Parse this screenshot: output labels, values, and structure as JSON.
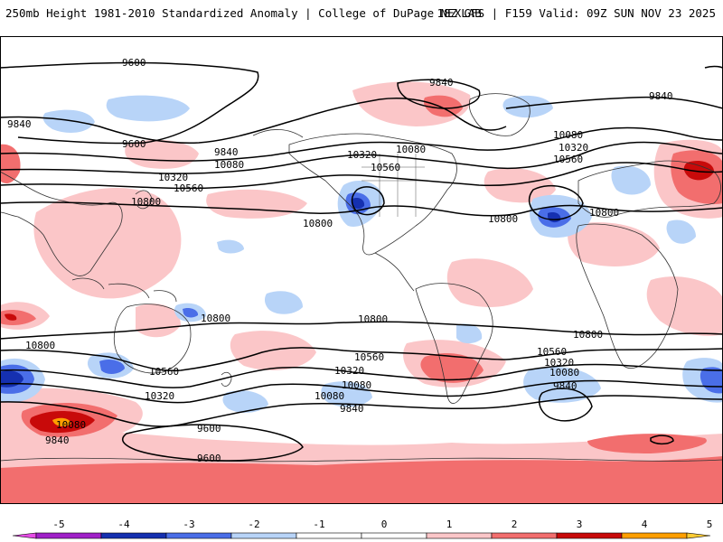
{
  "header": {
    "title": "250mb Height 1981-2010 Standardized Anomaly | College of DuPage NEXLAB",
    "run_info": "18Z GFS | F159 Valid: 09Z SUN NOV 23 2025"
  },
  "map": {
    "product": "250mb Height Standardized Anomaly",
    "model": "GFS",
    "contour_labels": [
      {
        "text": "9600"
      },
      {
        "text": "9840"
      },
      {
        "text": "9840"
      },
      {
        "text": "9600"
      },
      {
        "text": "9840"
      },
      {
        "text": "10080"
      },
      {
        "text": "10320"
      },
      {
        "text": "10560"
      },
      {
        "text": "10800"
      },
      {
        "text": "10320"
      },
      {
        "text": "10080"
      },
      {
        "text": "10560"
      },
      {
        "text": "10080"
      },
      {
        "text": "10320"
      },
      {
        "text": "10560"
      },
      {
        "text": "10800"
      },
      {
        "text": "10800"
      },
      {
        "text": "10800"
      },
      {
        "text": "9840"
      },
      {
        "text": "10800"
      },
      {
        "text": "10800"
      },
      {
        "text": "10800"
      },
      {
        "text": "10800"
      },
      {
        "text": "10560"
      },
      {
        "text": "10320"
      },
      {
        "text": "10080"
      },
      {
        "text": "9840"
      },
      {
        "text": "10560"
      },
      {
        "text": "10320"
      },
      {
        "text": "10080"
      },
      {
        "text": "9840"
      },
      {
        "text": "10560"
      },
      {
        "text": "10320"
      },
      {
        "text": "10080"
      },
      {
        "text": "9840"
      },
      {
        "text": "9600"
      },
      {
        "text": "9600"
      },
      {
        "text": "10080"
      }
    ]
  },
  "colorbar": {
    "tick_labels": [
      "-5",
      "-4",
      "-3",
      "-2",
      "-1",
      "0",
      "1",
      "2",
      "3",
      "4",
      "5"
    ],
    "bins": [
      {
        "from": -5,
        "to": -4,
        "color": "#a020c8"
      },
      {
        "from": -4,
        "to": -3,
        "color": "#1530b0"
      },
      {
        "from": -3,
        "to": -2,
        "color": "#4a6ee8"
      },
      {
        "from": -2,
        "to": -1,
        "color": "#b8d4f8"
      },
      {
        "from": -1,
        "to": 0,
        "color": "#ffffff"
      },
      {
        "from": 0,
        "to": 1,
        "color": "#ffffff"
      },
      {
        "from": 1,
        "to": 2,
        "color": "#fbc6c8"
      },
      {
        "from": 2,
        "to": 3,
        "color": "#f26e6e"
      },
      {
        "from": 3,
        "to": 4,
        "color": "#c80a0a"
      },
      {
        "from": 4,
        "to": 5,
        "color": "#ff9f00"
      }
    ],
    "below_color": "#e64ce6",
    "above_color": "#ffcc33"
  }
}
